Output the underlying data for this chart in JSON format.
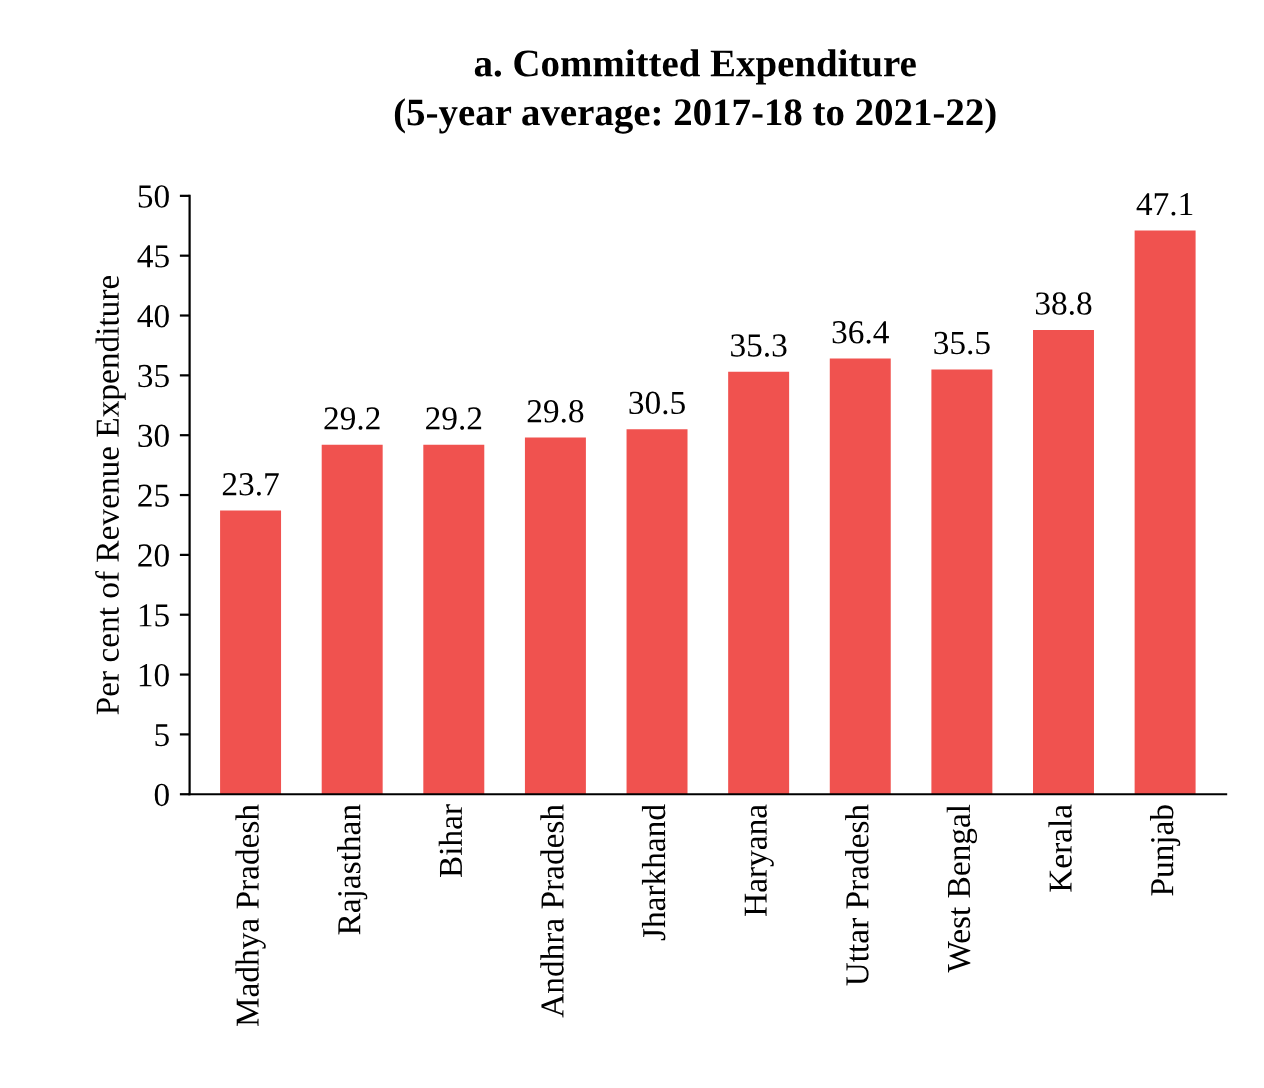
{
  "chart_data": {
    "type": "bar",
    "title": "a. Committed Expenditure",
    "subtitle": "(5-year average: 2017-18 to 2021-22)",
    "ylabel": "Per cent of Revenue Expenditure",
    "categories": [
      "Madhya Pradesh",
      "Rajasthan",
      "Bihar",
      "Andhra Pradesh",
      "Jharkhand",
      "Haryana",
      "Uttar Pradesh",
      "West Bengal",
      "Kerala",
      "Punjab"
    ],
    "values": [
      23.7,
      29.2,
      29.2,
      29.8,
      30.5,
      35.3,
      36.4,
      35.5,
      38.8,
      47.1
    ],
    "color": "#f0524f",
    "ylim": [
      0,
      50
    ],
    "yticks": [
      0,
      5,
      10,
      15,
      20,
      25,
      30,
      35,
      40,
      45,
      50
    ],
    "data_labels": true,
    "grid": false,
    "legend": false
  }
}
